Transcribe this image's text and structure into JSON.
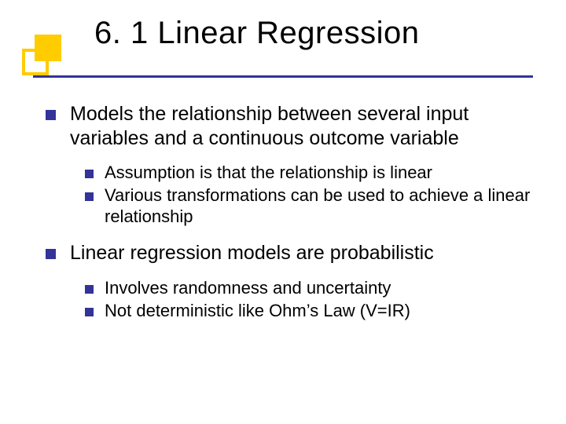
{
  "colors": {
    "text": "#000000",
    "bullet": "#333399",
    "underline": "#333399",
    "decor_outer_border": "#ffcc00",
    "decor_inner_fill": "#ffcc00",
    "background": "#ffffff"
  },
  "title": "6. 1 Linear Regression",
  "items": [
    {
      "text": "Models the relationship between several input variables and a continuous outcome variable",
      "sub": [
        {
          "text": "Assumption is that the relationship is linear"
        },
        {
          "text": "Various transformations can be used to achieve a linear relationship"
        }
      ]
    },
    {
      "text": "Linear regression models are probabilistic",
      "sub": [
        {
          "text": "Involves randomness and uncertainty"
        },
        {
          "text": "Not deterministic like Ohm’s Law (V=IR)"
        }
      ]
    }
  ]
}
